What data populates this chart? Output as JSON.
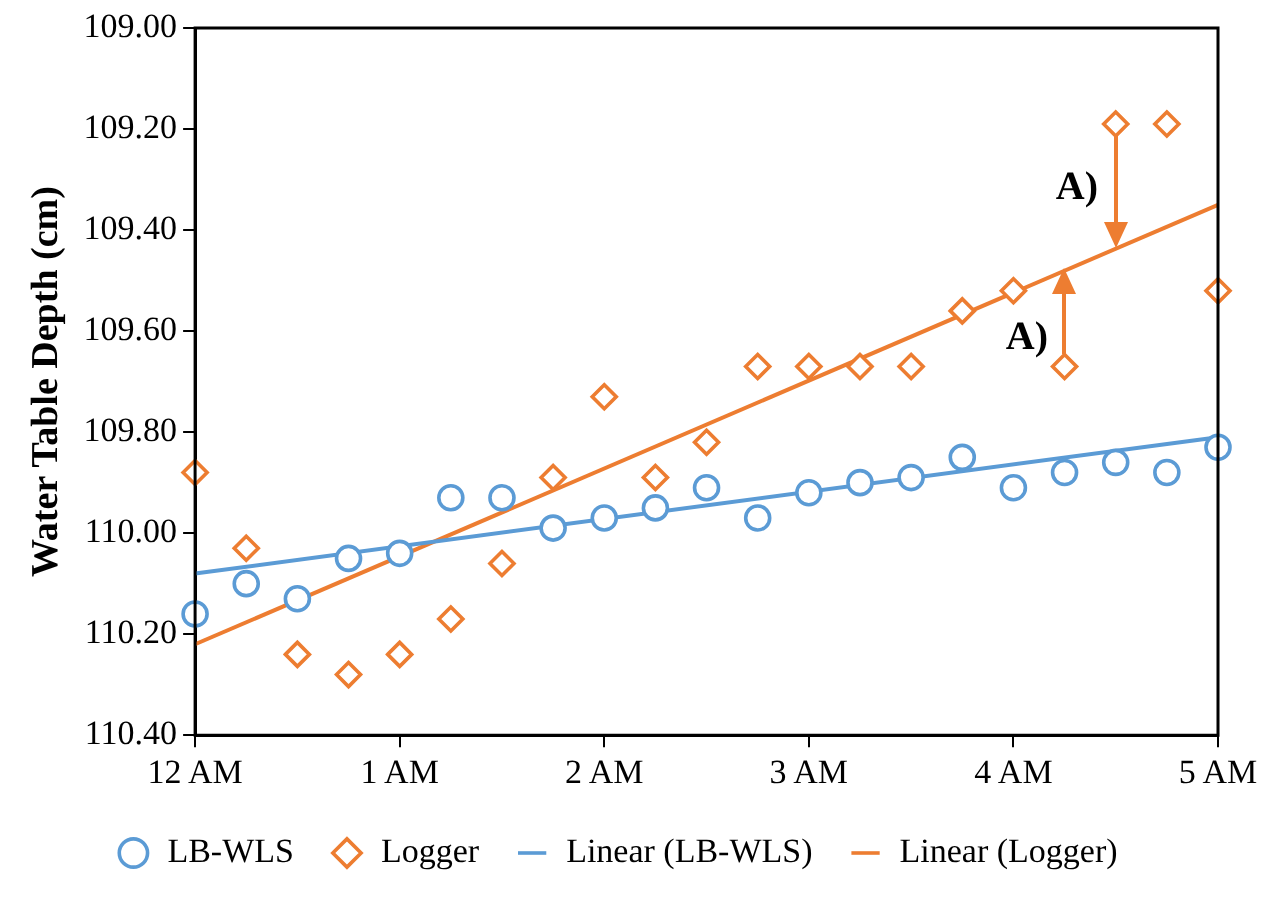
{
  "chart_data": {
    "type": "scatter",
    "ylabel": "Water Table Depth (cm)",
    "categories": [
      "12 AM",
      null,
      null,
      null,
      "1 AM",
      null,
      null,
      null,
      "2 AM",
      null,
      null,
      null,
      "3 AM",
      null,
      null,
      null,
      "4 AM",
      null,
      null,
      null,
      "5 AM"
    ],
    "ylim": [
      110.4,
      109.0
    ],
    "yticks": [
      {
        "value": 109.0,
        "label": "109.00"
      },
      {
        "value": 109.2,
        "label": "109.20"
      },
      {
        "value": 109.4,
        "label": "109.40"
      },
      {
        "value": 109.6,
        "label": "109.60"
      },
      {
        "value": 109.8,
        "label": "109.80"
      },
      {
        "value": 110.0,
        "label": "110.00"
      },
      {
        "value": 110.2,
        "label": "110.20"
      },
      {
        "value": 110.4,
        "label": "110.40"
      }
    ],
    "grid": false,
    "legend": "bottom",
    "series": [
      {
        "name": "LB-WLS",
        "type": "scatter",
        "marker": "circle",
        "color": "#5b9bd5",
        "values": [
          110.16,
          110.1,
          110.13,
          110.05,
          110.04,
          109.93,
          109.93,
          109.99,
          109.97,
          109.95,
          109.91,
          109.97,
          109.92,
          109.9,
          109.89,
          109.85,
          109.91,
          109.88,
          109.86,
          109.88,
          109.83
        ]
      },
      {
        "name": "Logger",
        "type": "scatter",
        "marker": "diamond",
        "color": "#ed7d31",
        "values": [
          109.88,
          110.03,
          110.24,
          110.28,
          110.24,
          110.17,
          110.06,
          109.89,
          109.73,
          109.89,
          109.82,
          109.67,
          109.67,
          109.67,
          109.67,
          109.56,
          109.52,
          109.67,
          109.19,
          109.19,
          109.52
        ]
      },
      {
        "name": "Linear (LB-WLS)",
        "type": "line",
        "marker": "none",
        "line_style": "solid",
        "color": "#5b9bd5",
        "x": [
          "12 AM",
          "5 AM"
        ],
        "values": [
          110.08,
          109.81
        ]
      },
      {
        "name": "Linear (Logger)",
        "type": "line",
        "marker": "none",
        "line_style": "solid",
        "color": "#ed7d31",
        "x": [
          "12 AM",
          "5 AM"
        ],
        "values": [
          110.22,
          109.35
        ]
      }
    ],
    "annotations": [
      "A)",
      "A)"
    ]
  }
}
